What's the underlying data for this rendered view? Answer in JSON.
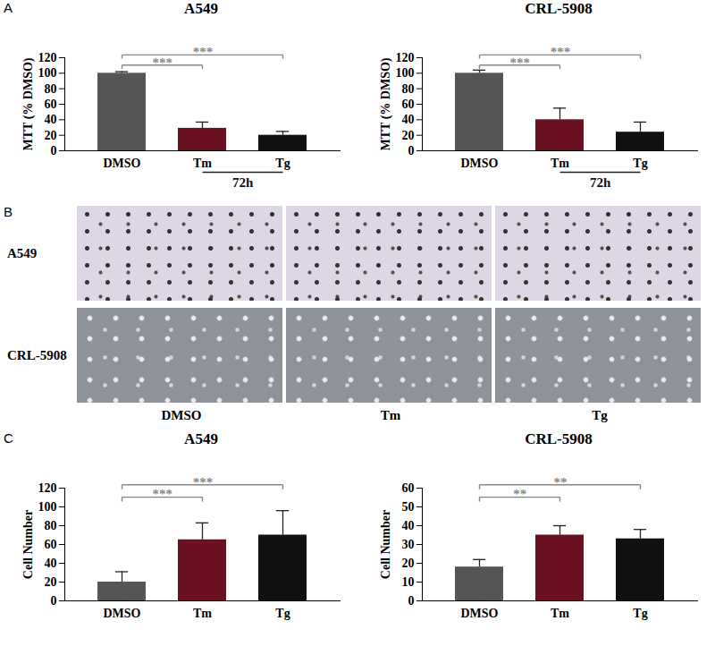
{
  "chart_data": [
    {
      "type": "bar",
      "panel_label": "A",
      "title": "A549",
      "y_label": "MTT (% DMSO)",
      "categories": [
        "DMSO",
        "Tm",
        "Tg"
      ],
      "values": [
        100,
        29,
        20
      ],
      "errors": [
        2,
        8,
        5
      ],
      "colors": [
        "#555555",
        "#6b1020",
        "#111111"
      ],
      "ylim": [
        0,
        120
      ],
      "yticks": [
        0,
        20,
        40,
        60,
        80,
        100,
        120
      ],
      "x_group_label": {
        "text": "72h",
        "categories": [
          "Tm",
          "Tg"
        ]
      },
      "annotations": [
        {
          "from": "DMSO",
          "to": "Tm",
          "text": "***"
        },
        {
          "from": "DMSO",
          "to": "Tg",
          "text": "***"
        }
      ]
    },
    {
      "type": "bar",
      "title": "CRL-5908",
      "y_label": "MTT (% DMSO)",
      "categories": [
        "DMSO",
        "Tm",
        "Tg"
      ],
      "values": [
        100,
        40,
        24
      ],
      "errors": [
        4,
        15,
        13
      ],
      "colors": [
        "#555555",
        "#6b1020",
        "#111111"
      ],
      "ylim": [
        0,
        120
      ],
      "yticks": [
        0,
        20,
        40,
        60,
        80,
        100,
        120
      ],
      "x_group_label": {
        "text": "72h",
        "categories": [
          "Tm",
          "Tg"
        ]
      },
      "annotations": [
        {
          "from": "DMSO",
          "to": "Tm",
          "text": "***"
        },
        {
          "from": "DMSO",
          "to": "Tg",
          "text": "***"
        }
      ]
    },
    {
      "type": "bar",
      "panel_label": "C",
      "title": "A549",
      "y_label": "Cell Number",
      "categories": [
        "DMSO",
        "Tm",
        "Tg"
      ],
      "values": [
        20,
        65,
        70
      ],
      "errors": [
        11,
        18,
        26
      ],
      "colors": [
        "#555555",
        "#6b1020",
        "#111111"
      ],
      "ylim": [
        0,
        120
      ],
      "yticks": [
        0,
        20,
        40,
        60,
        80,
        100,
        120
      ],
      "annotations": [
        {
          "from": "DMSO",
          "to": "Tm",
          "text": "***"
        },
        {
          "from": "DMSO",
          "to": "Tg",
          "text": "***"
        }
      ]
    },
    {
      "type": "bar",
      "title": "CRL-5908",
      "y_label": "Cell Number",
      "categories": [
        "DMSO",
        "Tm",
        "Tg"
      ],
      "values": [
        18,
        35,
        33
      ],
      "errors": [
        4,
        5,
        5
      ],
      "colors": [
        "#555555",
        "#6b1020",
        "#111111"
      ],
      "ylim": [
        0,
        60
      ],
      "yticks": [
        0,
        10,
        20,
        30,
        40,
        50,
        60
      ],
      "annotations": [
        {
          "from": "DMSO",
          "to": "Tm",
          "text": "**"
        },
        {
          "from": "DMSO",
          "to": "Tg",
          "text": "**"
        }
      ]
    }
  ],
  "image_panel": {
    "panel_label": "B",
    "rows": [
      "A549",
      "CRL-5908"
    ],
    "columns": [
      "DMSO",
      "Tm",
      "Tg"
    ]
  }
}
